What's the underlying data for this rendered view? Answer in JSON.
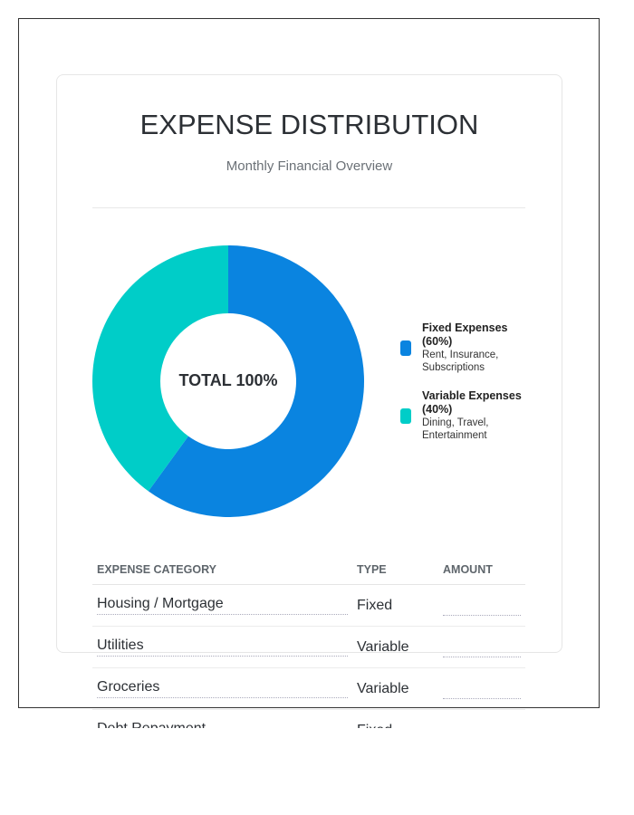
{
  "header": {
    "title": "EXPENSE DISTRIBUTION",
    "subtitle": "Monthly Financial Overview"
  },
  "chart_data": {
    "type": "pie",
    "variant": "donut",
    "center_label": "TOTAL 100%",
    "categories": [
      "Fixed Expenses",
      "Variable Expenses"
    ],
    "values": [
      60,
      40
    ],
    "colors": [
      "#0a84e0",
      "#00cdc8"
    ],
    "legend_placement": "right"
  },
  "legend": [
    {
      "title": "Fixed Expenses (60%)",
      "desc": "Rent, Insurance, Subscriptions",
      "color": "#0a84e0"
    },
    {
      "title": "Variable Expenses (40%)",
      "desc": "Dining, Travel, Entertainment",
      "color": "#00cdc8"
    }
  ],
  "table": {
    "headers": [
      "EXPENSE CATEGORY",
      "TYPE",
      "AMOUNT"
    ],
    "rows": [
      {
        "category": "Housing / Mortgage",
        "type": "Fixed",
        "amount": ""
      },
      {
        "category": "Utilities",
        "type": "Variable",
        "amount": ""
      },
      {
        "category": "Groceries",
        "type": "Variable",
        "amount": ""
      },
      {
        "category": "Debt Repayment",
        "type": "Fixed",
        "amount": ""
      }
    ]
  }
}
